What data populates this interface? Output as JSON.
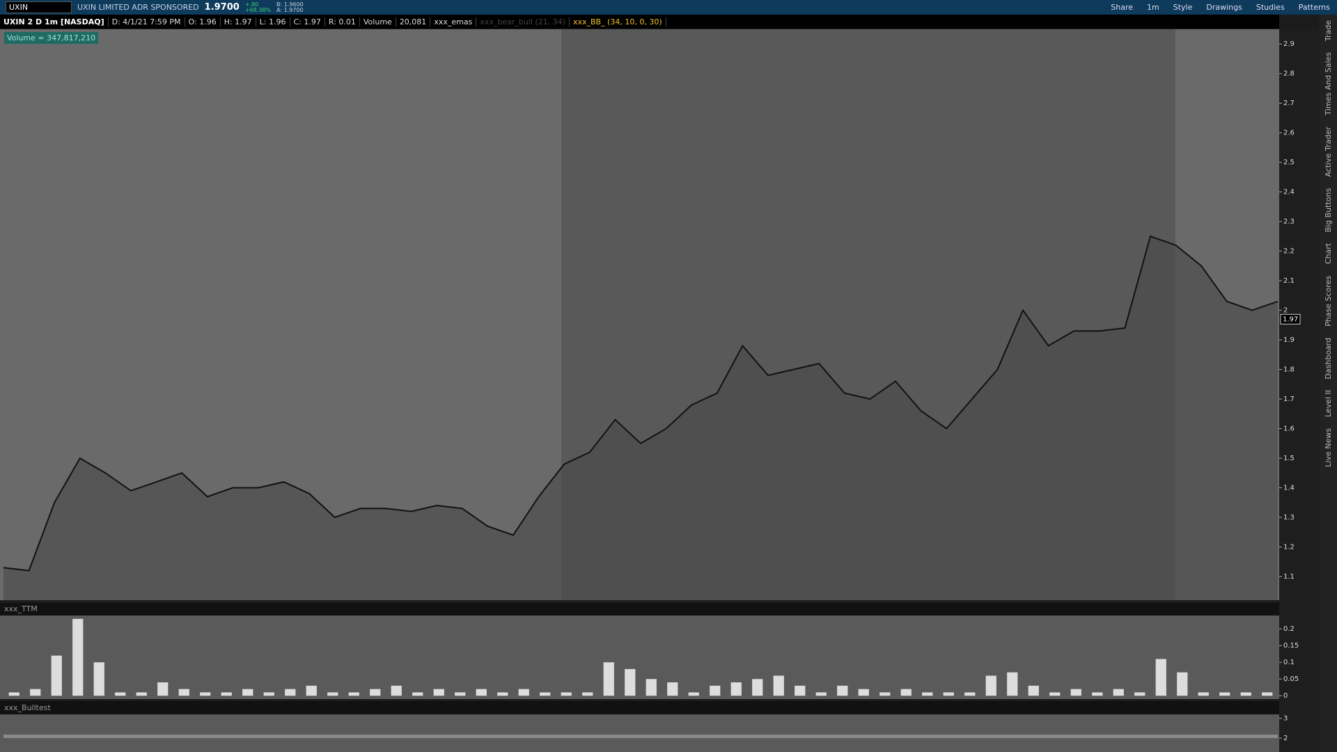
{
  "toolbar": {
    "symbol": "UXIN",
    "description": "UXIN LIMITED ADR SPONSORED",
    "last": "1.9700",
    "change": "+.80",
    "change_pct": "+68.38%",
    "bid": "B: 1.9600",
    "ask": "A: 1.9700",
    "buttons": [
      "Share",
      "1m",
      "Style",
      "Drawings",
      "Studies",
      "Patterns"
    ]
  },
  "info_bar": {
    "items": [
      "UXIN 2 D 1m [NASDAQ]",
      "D: 4/1/21 7:59 PM",
      "O: 1.96",
      "H: 1.97",
      "L: 1.96",
      "C: 1.97",
      "R: 0.01",
      "Volume",
      "20,081",
      "xxx_emas",
      "xxx_bear_bull (21, 34)",
      "xxx_BB_ (34, 10, 0, 30)"
    ]
  },
  "chart": {
    "type": "line",
    "volume_label": "Volume = 347,817,210",
    "color": "#111111",
    "values": [
      1.13,
      1.12,
      1.35,
      1.5,
      1.45,
      1.39,
      1.42,
      1.45,
      1.37,
      1.4,
      1.4,
      1.42,
      1.38,
      1.3,
      1.33,
      1.33,
      1.32,
      1.34,
      1.33,
      1.27,
      1.24,
      1.37,
      1.48,
      1.52,
      1.63,
      1.55,
      1.6,
      1.68,
      1.72,
      1.88,
      1.78,
      1.8,
      1.82,
      1.72,
      1.7,
      1.76,
      1.66,
      1.6,
      1.7,
      1.8,
      2.0,
      1.88,
      1.93,
      1.93,
      1.94,
      2.25,
      2.22,
      2.15,
      2.03,
      2.0,
      2.03
    ],
    "ylim": [
      1.02,
      2.95
    ],
    "yticks": [
      1.1,
      1.2,
      1.3,
      1.4,
      1.5,
      1.6,
      1.7,
      1.8,
      1.9,
      2,
      2.1,
      2.2,
      2.3,
      2.4,
      2.5,
      2.6,
      2.7,
      2.8,
      2.9
    ],
    "last_price": 1.97
  },
  "ttm": {
    "title": "xxx_TTM",
    "type": "bar",
    "color": "#dddddd",
    "values": [
      0.01,
      0.02,
      0.12,
      0.23,
      0.1,
      0.01,
      0.01,
      0.04,
      0.02,
      0.01,
      0.01,
      0.02,
      0.01,
      0.02,
      0.03,
      0.01,
      0.01,
      0.02,
      0.03,
      0.01,
      0.02,
      0.01,
      0.02,
      0.01,
      0.02,
      0.01,
      0.01,
      0.01,
      0.1,
      0.08,
      0.05,
      0.04,
      0.01,
      0.03,
      0.04,
      0.05,
      0.06,
      0.03,
      0.01,
      0.03,
      0.02,
      0.01,
      0.02,
      0.01,
      0.01,
      0.01,
      0.06,
      0.07,
      0.03,
      0.01,
      0.02,
      0.01,
      0.02,
      0.01,
      0.11,
      0.07,
      0.01,
      0.01,
      0.01,
      0.01
    ],
    "ylim": [
      -0.01,
      0.24
    ],
    "yticks": [
      0,
      0.05,
      0.1,
      0.15,
      0.2
    ]
  },
  "bulltest": {
    "title": "xxx_Bulltest",
    "ylim": [
      1.3,
      3.2
    ],
    "yticks": [
      2,
      3
    ]
  },
  "sidebar": {
    "tabs": [
      "Trade",
      "Times And Sales",
      "Active Trader",
      "Big Buttons",
      "Chart",
      "Phase Scores",
      "Dashboard",
      "Level II",
      "Live News"
    ]
  }
}
